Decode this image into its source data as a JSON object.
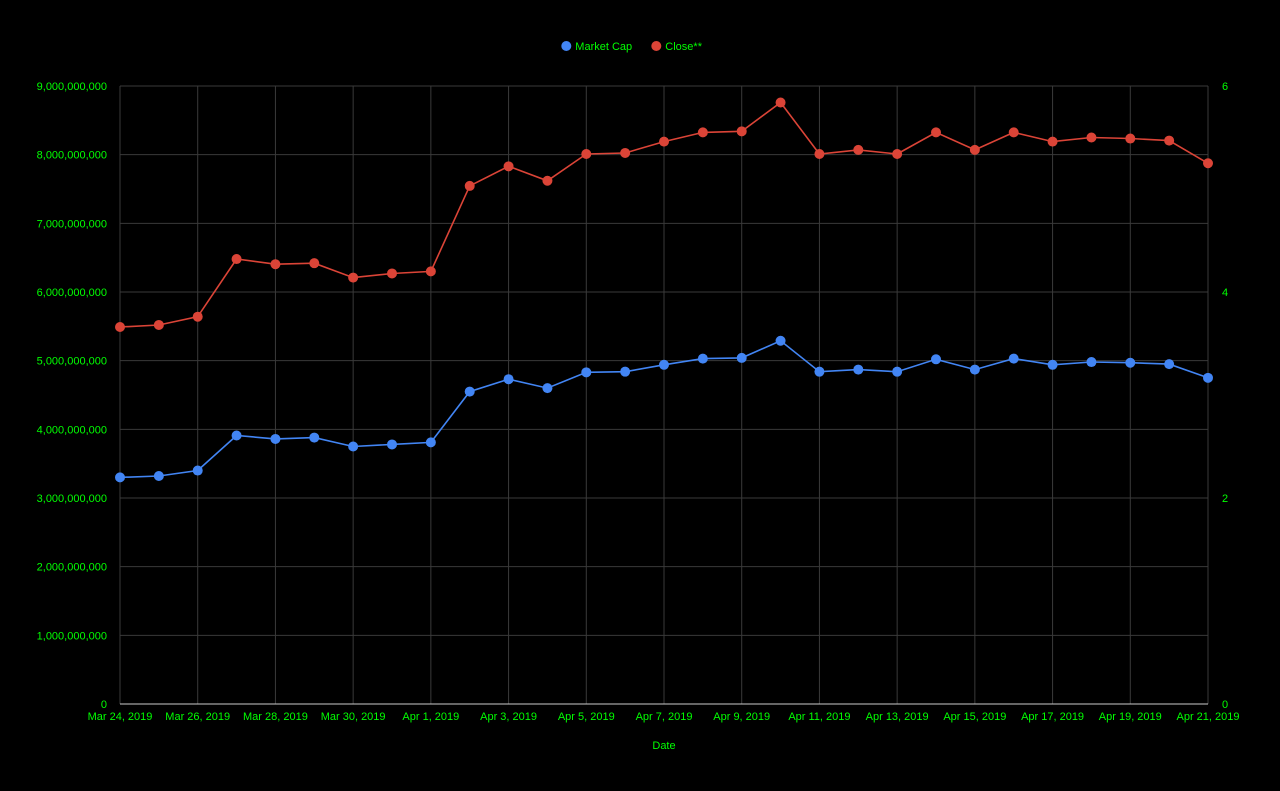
{
  "colors": {
    "background": "#000000",
    "text": "#00ff00",
    "grid": "#3a3a3a",
    "axis": "#cccccc",
    "market_cap": "#4285f4",
    "close": "#db4437"
  },
  "chart_data": {
    "type": "line",
    "xlabel": "Date",
    "x": [
      "Mar 24, 2019",
      "Mar 25, 2019",
      "Mar 26, 2019",
      "Mar 27, 2019",
      "Mar 28, 2019",
      "Mar 29, 2019",
      "Mar 30, 2019",
      "Mar 31, 2019",
      "Apr 1, 2019",
      "Apr 2, 2019",
      "Apr 3, 2019",
      "Apr 4, 2019",
      "Apr 5, 2019",
      "Apr 6, 2019",
      "Apr 7, 2019",
      "Apr 8, 2019",
      "Apr 9, 2019",
      "Apr 10, 2019",
      "Apr 11, 2019",
      "Apr 12, 2019",
      "Apr 13, 2019",
      "Apr 14, 2019",
      "Apr 15, 2019",
      "Apr 16, 2019",
      "Apr 17, 2019",
      "Apr 18, 2019",
      "Apr 19, 2019",
      "Apr 20, 2019",
      "Apr 21, 2019"
    ],
    "x_tick_labels": [
      "Mar 24, 2019",
      "Mar 26, 2019",
      "Mar 28, 2019",
      "Mar 30, 2019",
      "Apr 1, 2019",
      "Apr 3, 2019",
      "Apr 5, 2019",
      "Apr 7, 2019",
      "Apr 9, 2019",
      "Apr 11, 2019",
      "Apr 13, 2019",
      "Apr 15, 2019",
      "Apr 17, 2019",
      "Apr 19, 2019",
      "Apr 21, 2019"
    ],
    "y_left": {
      "ylim": [
        0,
        9000000000
      ],
      "ticks": [
        "0",
        "1,000,000,000",
        "2,000,000,000",
        "3,000,000,000",
        "4,000,000,000",
        "5,000,000,000",
        "6,000,000,000",
        "7,000,000,000",
        "8,000,000,000",
        "9,000,000,000"
      ]
    },
    "y_right": {
      "ylim": [
        0,
        6
      ],
      "ticks": [
        "0",
        "2",
        "4",
        "6"
      ]
    },
    "legend_position": "top",
    "grid": true,
    "series": [
      {
        "name": "Market Cap",
        "axis": "left",
        "values": [
          3300000000,
          3320000000,
          3400000000,
          3910000000,
          3860000000,
          3880000000,
          3750000000,
          3780000000,
          3810000000,
          4550000000,
          4730000000,
          4600000000,
          4830000000,
          4840000000,
          4940000000,
          5030000000,
          5040000000,
          5290000000,
          4840000000,
          4870000000,
          4840000000,
          5020000000,
          4870000000,
          5030000000,
          4940000000,
          4980000000,
          4970000000,
          4950000000,
          4750000000
        ]
      },
      {
        "name": "Close**",
        "axis": "right",
        "values": [
          3.66,
          3.68,
          3.76,
          4.32,
          4.27,
          4.28,
          4.14,
          4.18,
          4.2,
          5.03,
          5.22,
          5.08,
          5.34,
          5.35,
          5.46,
          5.55,
          5.56,
          5.84,
          5.34,
          5.38,
          5.34,
          5.55,
          5.38,
          5.55,
          5.46,
          5.5,
          5.49,
          5.47,
          5.25
        ]
      }
    ]
  }
}
